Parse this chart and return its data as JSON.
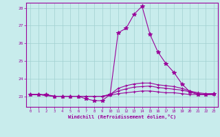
{
  "xlabel": "Windchill (Refroidissement éolien,°C)",
  "background_color": "#c8ecec",
  "line_color": "#990099",
  "grid_color": "#a0d0d0",
  "xlim": [
    -0.5,
    23.5
  ],
  "ylim": [
    22.4,
    28.3
  ],
  "yticks": [
    23,
    24,
    25,
    26,
    27,
    28
  ],
  "xticks": [
    0,
    1,
    2,
    3,
    4,
    5,
    6,
    7,
    8,
    9,
    10,
    11,
    12,
    13,
    14,
    15,
    16,
    17,
    18,
    19,
    20,
    21,
    22,
    23
  ],
  "series": [
    [
      23.1,
      23.1,
      23.1,
      23.0,
      23.0,
      23.0,
      23.0,
      22.85,
      22.75,
      22.75,
      23.1,
      26.6,
      26.85,
      27.65,
      28.1,
      26.5,
      25.5,
      24.85,
      24.35,
      23.7,
      23.25,
      23.1,
      23.1,
      23.15
    ],
    [
      23.1,
      23.1,
      23.05,
      23.0,
      23.0,
      23.0,
      23.0,
      23.0,
      23.0,
      23.0,
      23.1,
      23.45,
      23.6,
      23.7,
      23.75,
      23.75,
      23.65,
      23.6,
      23.55,
      23.45,
      23.3,
      23.2,
      23.15,
      23.15
    ],
    [
      23.1,
      23.1,
      23.05,
      23.0,
      23.0,
      23.0,
      23.0,
      23.0,
      23.0,
      23.0,
      23.1,
      23.3,
      23.42,
      23.52,
      23.55,
      23.58,
      23.5,
      23.45,
      23.4,
      23.35,
      23.25,
      23.15,
      23.1,
      23.1
    ],
    [
      23.1,
      23.1,
      23.05,
      23.0,
      23.0,
      23.0,
      23.0,
      23.0,
      23.0,
      23.0,
      23.05,
      23.15,
      23.2,
      23.25,
      23.3,
      23.3,
      23.25,
      23.2,
      23.2,
      23.15,
      23.1,
      23.1,
      23.1,
      23.1
    ]
  ],
  "marker_styles": [
    "*",
    "+",
    "+",
    "+"
  ],
  "marker_sizes": [
    4,
    3,
    3,
    3
  ],
  "linewidths": [
    0.8,
    0.8,
    0.8,
    0.8
  ]
}
